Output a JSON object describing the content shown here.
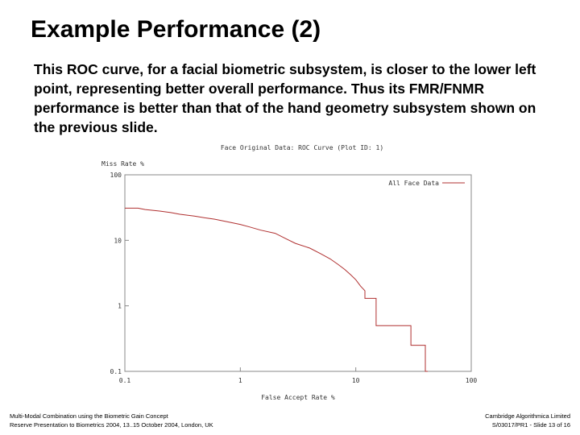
{
  "slide": {
    "title": "Example Performance (2)",
    "body": "This ROC curve, for a facial biometric subsystem, is closer to the lower left point, representing better overall performance.  Thus its FMR/FNMR performance is better than that of the hand geometry subsystem shown on the previous slide."
  },
  "footer": {
    "left_line1": "Multi-Modal Combination using the Biometric Gain Concept",
    "left_line2": "Reserve Presentation to Biometrics 2004, 13..15 October 2004, London, UK",
    "right_line1": "Cambridge Algorithmica Limited",
    "right_line2": "S/03017/PR1 - Slide 13 of 16"
  },
  "chart_data": {
    "type": "line",
    "title": "Face Original Data: ROC Curve (Plot ID: 1)",
    "xlabel": "False Accept Rate %",
    "ylabel": "Miss Rate %",
    "x_scale": "log",
    "y_scale": "log",
    "xlim": [
      0.1,
      100
    ],
    "ylim": [
      0.1,
      100
    ],
    "x_ticks": [
      {
        "value": 0.1,
        "label": "0.1"
      },
      {
        "value": 1,
        "label": "1"
      },
      {
        "value": 10,
        "label": "10"
      },
      {
        "value": 100,
        "label": "100"
      }
    ],
    "y_ticks": [
      {
        "value": 0.1,
        "label": "0.1"
      },
      {
        "value": 1,
        "label": "1"
      },
      {
        "value": 10,
        "label": "10"
      },
      {
        "value": 100,
        "label": "100"
      }
    ],
    "grid": false,
    "legend": "top-right",
    "series": [
      {
        "name": "All Face Data",
        "color": "#b03030",
        "x": [
          0.1,
          0.13,
          0.15,
          0.2,
          0.25,
          0.3,
          0.4,
          0.5,
          0.6,
          0.8,
          1.0,
          1.2,
          1.5,
          2.0,
          2.5,
          3.0,
          4.0,
          5.0,
          6.0,
          7.0,
          8.0,
          9.0,
          10.0,
          11.0,
          12.0,
          12.0,
          14.0,
          15.0,
          15.0,
          20.0,
          25.0,
          30.0,
          30.0,
          40.0,
          40.0,
          42.0
        ],
        "y": [
          31,
          31,
          29.5,
          28,
          26.5,
          25,
          23.5,
          22,
          21,
          19,
          17.5,
          16,
          14.3,
          12.8,
          10.5,
          9.0,
          7.6,
          6.2,
          5.2,
          4.3,
          3.6,
          3.0,
          2.5,
          2.0,
          1.7,
          1.3,
          1.3,
          1.3,
          0.5,
          0.5,
          0.5,
          0.5,
          0.25,
          0.25,
          0.1,
          0.1
        ]
      }
    ]
  }
}
